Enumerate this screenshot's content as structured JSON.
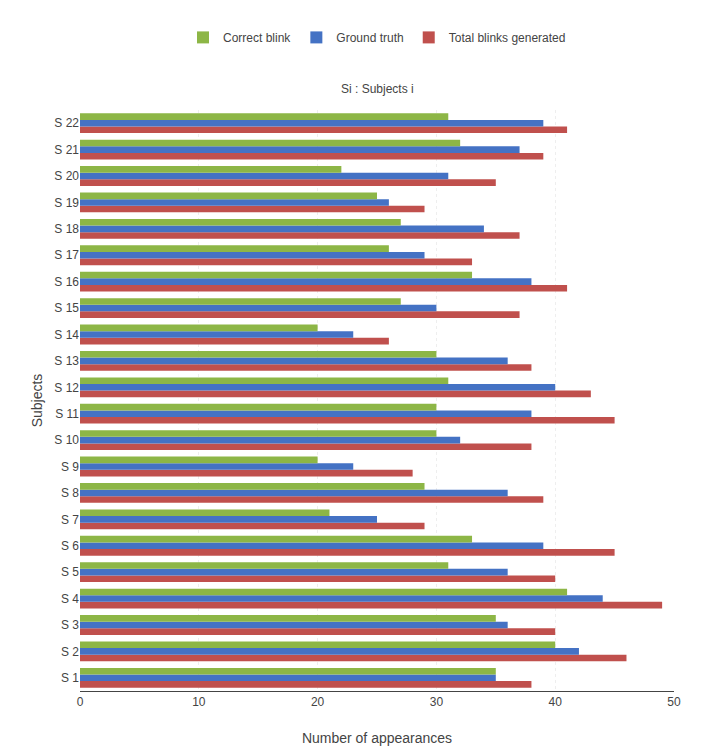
{
  "chart_data": {
    "type": "bar",
    "orientation": "horizontal",
    "xlabel": "Number of appearances",
    "ylabel": "Subjects",
    "categories": [
      "S 1",
      "S 2",
      "S 3",
      "S 4",
      "S 5",
      "S 6",
      "S 7",
      "S 8",
      "S 9",
      "S 10",
      "S 11",
      "S 12",
      "S 13",
      "S 14",
      "S 15",
      "S 16",
      "S 17",
      "S 18",
      "S 19",
      "S 20",
      "S 21",
      "S 22"
    ],
    "series": [
      {
        "name": "Total blinks generated",
        "color": "#C0504D",
        "values": [
          38,
          46,
          40,
          49,
          40,
          45,
          29,
          39,
          28,
          38,
          45,
          43,
          38,
          26,
          37,
          41,
          33,
          37,
          29,
          35,
          39,
          41
        ]
      },
      {
        "name": "Ground truth",
        "color": "#4472C4",
        "values": [
          35,
          42,
          36,
          44,
          36,
          39,
          25,
          36,
          23,
          32,
          38,
          40,
          36,
          23,
          30,
          38,
          29,
          34,
          26,
          31,
          37,
          39
        ]
      },
      {
        "name": "Correct blink",
        "color": "#8DB646",
        "values": [
          35,
          40,
          35,
          41,
          31,
          33,
          21,
          29,
          20,
          30,
          30,
          31,
          30,
          20,
          27,
          33,
          26,
          27,
          25,
          22,
          32,
          31
        ]
      }
    ],
    "xlim": [
      0,
      50
    ],
    "xticks": [
      0,
      10,
      20,
      30,
      40,
      50
    ],
    "grid": true,
    "legend": "top",
    "annotations": [
      "Si : Subjects i"
    ]
  }
}
